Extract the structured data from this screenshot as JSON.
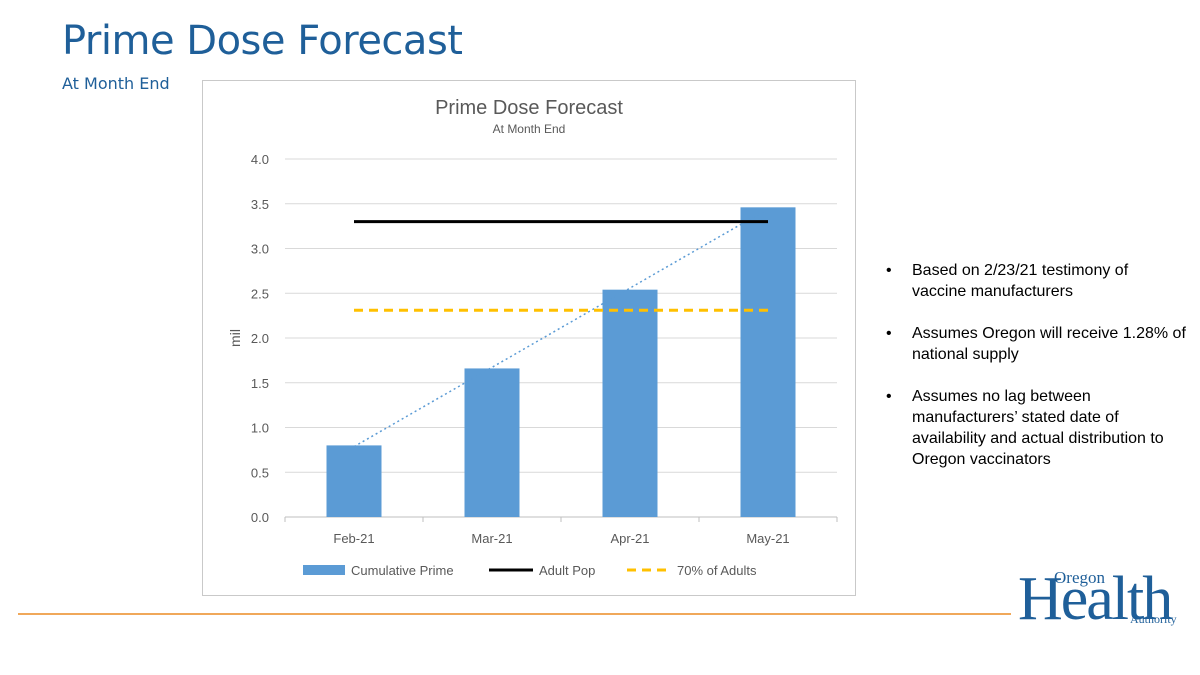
{
  "slide": {
    "title": "Prime Dose Forecast",
    "subtitle": "At Month End"
  },
  "bullets": [
    "Based on 2/23/21 testimony of vaccine manufacturers",
    "Assumes Oregon will receive 1.28% of national supply",
    "Assumes no lag between manufacturers’ stated date of availability and actual distribution to Oregon vaccinators"
  ],
  "bullet_symbol": "•",
  "logo": {
    "line1": "Oregon",
    "line2": "Health",
    "line3": "Authority"
  },
  "colors": {
    "accent": "#1f5f99",
    "bar": "#5b9bd5",
    "adult_pop": "#000000",
    "adults_70": "#ffc000",
    "trend": "#5b9bd5",
    "footer_line": "#f0a85a"
  },
  "chart_data": {
    "type": "bar",
    "title": "Prime Dose Forecast",
    "subtitle": "At Month End",
    "xlabel": "",
    "ylabel": "mil",
    "ylim": [
      0,
      4
    ],
    "yticks": [
      0,
      0.5,
      1,
      1.5,
      2,
      2.5,
      3,
      3.5,
      4
    ],
    "ytick_labels": [
      "0.0",
      "0.5",
      "1.0",
      "1.5",
      "2.0",
      "2.5",
      "3.0",
      "3.5",
      "4.0"
    ],
    "grid": true,
    "categories": [
      "Feb-21",
      "Mar-21",
      "Apr-21",
      "May-21"
    ],
    "series": [
      {
        "name": "Cumulative Prime",
        "kind": "bar",
        "values": [
          0.8,
          1.66,
          2.54,
          3.46
        ]
      },
      {
        "name": "Adult Pop",
        "kind": "line",
        "values": [
          3.3,
          3.3,
          3.3,
          3.3
        ]
      },
      {
        "name": "70% of Adults",
        "kind": "dashed-line",
        "values": [
          2.31,
          2.31,
          2.31,
          2.31
        ]
      }
    ],
    "trendline": {
      "series": "Cumulative Prime",
      "style": "dotted linear"
    },
    "legend_position": "bottom"
  }
}
